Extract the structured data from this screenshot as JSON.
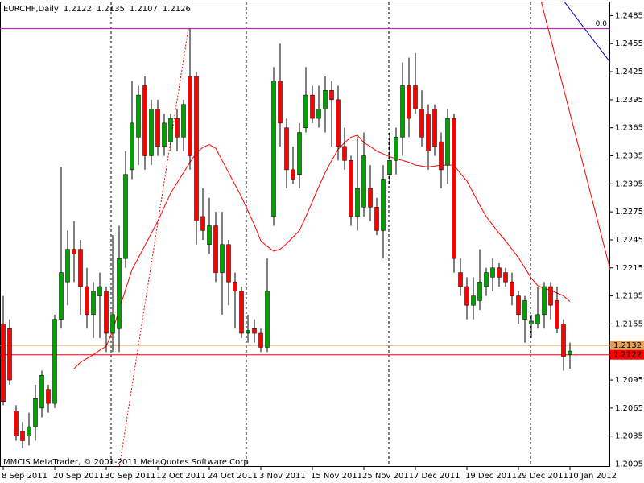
{
  "chart_data": {
    "type": "candlestick",
    "symbol": "EURCHF,Daily",
    "footer": "MMCIS MetaTrader, © 2001-2011 MetaQuotes Software Corp.",
    "up_color": "#00a000",
    "down_color": "#ff0000",
    "wick_color": "#000000",
    "categories": [
      "8 Sep 2011",
      null,
      null,
      null,
      null,
      null,
      null,
      null,
      "20 Sep 2011",
      null,
      null,
      null,
      null,
      null,
      null,
      null,
      "30 Sep 2011",
      null,
      null,
      null,
      null,
      null,
      null,
      null,
      "12 Oct 2011",
      null,
      null,
      null,
      null,
      null,
      null,
      null,
      "24 Oct 2011",
      null,
      null,
      null,
      null,
      null,
      null,
      null,
      "3 Nov 2011",
      null,
      null,
      null,
      null,
      null,
      null,
      null,
      "15 Nov 2011",
      null,
      null,
      null,
      null,
      null,
      null,
      null,
      "25 Nov 2011",
      null,
      null,
      null,
      null,
      null,
      null,
      null,
      "7 Dec 2011",
      null,
      null,
      null,
      null,
      null,
      null,
      null,
      "19 Dec 2011",
      null,
      null,
      null,
      null,
      null,
      null,
      null,
      "29 Dec 2011",
      null,
      null,
      null,
      null,
      null,
      null,
      null,
      "10 Jan 2012"
    ],
    "open": [
      1.2155,
      1.215,
      1.2062,
      1.204,
      1.2035,
      1.2045,
      1.2065,
      1.2085,
      1.207,
      1.216,
      1.22,
      1.2235,
      1.2235,
      1.2195,
      1.2165,
      1.2185,
      1.219,
      1.2145,
      1.215,
      1.2225,
      1.232,
      1.2355,
      1.241,
      1.2335,
      1.2385,
      1.2345,
      1.235,
      1.2375,
      1.2355,
      1.242,
      1.242,
      1.227,
      1.224,
      1.226,
      1.221,
      1.224,
      1.22,
      1.219,
      1.2145,
      1.215,
      1.2145,
      1.213,
      1.227,
      1.2415,
      1.2365,
      1.232,
      1.2315,
      1.2365,
      1.24,
      1.2375,
      1.2385,
      1.2405,
      1.2395,
      1.2345,
      1.233,
      1.227,
      1.228,
      1.23,
      1.228,
      1.2255,
      1.2315,
      1.233,
      1.2355,
      1.241,
      1.241,
      1.2385,
      1.238,
      1.2385,
      1.235,
      1.2325,
      1.2375,
      1.221,
      1.2195,
      1.2175,
      1.218,
      1.2195,
      1.2205,
      1.2215,
      1.221,
      1.22,
      1.2185,
      1.216,
      1.2155,
      1.2155,
      1.2165,
      1.2195,
      1.218,
      1.2155,
      1.2122
    ],
    "high": [
      1.2185,
      1.216,
      1.2068,
      1.205,
      1.206,
      1.209,
      1.2105,
      1.209,
      1.2165,
      1.2323,
      1.2255,
      1.2265,
      1.2245,
      1.2215,
      1.22,
      1.221,
      1.2195,
      1.225,
      1.226,
      1.234,
      1.2415,
      1.241,
      1.242,
      1.2395,
      1.2395,
      1.238,
      1.238,
      1.2385,
      1.2395,
      1.2471,
      1.2425,
      1.23,
      1.229,
      1.2275,
      1.2275,
      1.2245,
      1.221,
      1.2195,
      1.2165,
      1.216,
      1.215,
      1.2225,
      1.243,
      1.2455,
      1.2375,
      1.2345,
      1.237,
      1.243,
      1.241,
      1.241,
      1.242,
      1.2415,
      1.241,
      1.2365,
      1.2335,
      1.2355,
      1.236,
      1.2325,
      1.229,
      1.2325,
      1.236,
      1.2365,
      1.2435,
      1.244,
      1.2445,
      1.2405,
      1.239,
      1.239,
      1.236,
      1.2385,
      1.238,
      1.2225,
      1.2205,
      1.2205,
      1.2235,
      1.2215,
      1.2225,
      1.222,
      1.2215,
      1.221,
      1.219,
      1.2185,
      1.2165,
      1.2195,
      1.22,
      1.22,
      1.2195,
      1.216,
      1.2135
    ],
    "low": [
      1.2068,
      1.209,
      1.203,
      1.2022,
      1.2025,
      1.203,
      1.2055,
      1.206,
      1.2065,
      1.215,
      1.2175,
      1.22,
      1.2165,
      1.215,
      1.214,
      1.214,
      1.2125,
      1.2125,
      1.2125,
      1.2215,
      1.231,
      1.2325,
      1.232,
      1.2325,
      1.2335,
      1.2335,
      1.234,
      1.234,
      1.234,
      1.232,
      1.224,
      1.2245,
      1.223,
      1.22,
      1.2165,
      1.2175,
      1.215,
      1.214,
      1.2135,
      1.2135,
      1.2125,
      1.2125,
      1.226,
      1.2345,
      1.23,
      1.2305,
      1.23,
      1.236,
      1.237,
      1.2365,
      1.236,
      1.2345,
      1.233,
      1.232,
      1.226,
      1.2255,
      1.227,
      1.2265,
      1.225,
      1.2225,
      1.2305,
      1.2315,
      1.2335,
      1.2355,
      1.238,
      1.2345,
      1.232,
      1.2335,
      1.23,
      1.2305,
      1.221,
      1.2185,
      1.216,
      1.216,
      1.217,
      1.2185,
      1.219,
      1.2195,
      1.2195,
      1.2175,
      1.2155,
      1.2135,
      1.214,
      1.215,
      1.215,
      1.216,
      1.2145,
      1.2105,
      1.2107
    ],
    "close": [
      1.2072,
      1.2095,
      1.2035,
      1.203,
      1.2045,
      1.2075,
      1.21,
      1.207,
      1.216,
      1.221,
      1.2235,
      1.223,
      1.2195,
      1.2165,
      1.219,
      1.2195,
      1.2145,
      1.2165,
      1.2225,
      1.2315,
      1.237,
      1.24,
      1.2335,
      1.2385,
      1.2345,
      1.237,
      1.2375,
      1.2355,
      1.239,
      1.2335,
      1.2265,
      1.2255,
      1.226,
      1.221,
      1.224,
      1.22,
      1.219,
      1.2145,
      1.2148,
      1.2145,
      1.213,
      1.219,
      1.2415,
      1.237,
      1.232,
      1.231,
      1.236,
      1.24,
      1.2375,
      1.2385,
      1.2405,
      1.2395,
      1.2345,
      1.233,
      1.227,
      1.23,
      1.2335,
      1.228,
      1.2255,
      1.231,
      1.233,
      1.2355,
      1.241,
      1.2375,
      1.2385,
      1.2355,
      1.234,
      1.2345,
      1.232,
      1.2375,
      1.2225,
      1.2195,
      1.2175,
      1.2185,
      1.22,
      1.221,
      1.2215,
      1.2205,
      1.22,
      1.2185,
      1.2165,
      1.218,
      1.2158,
      1.2165,
      1.2195,
      1.2175,
      1.215,
      1.212,
      1.2126
    ],
    "ma": {
      "color": "#ff0000",
      "values": [
        null,
        null,
        null,
        null,
        null,
        null,
        null,
        null,
        null,
        null,
        null,
        1.2107,
        1.2114,
        1.2118,
        1.2122,
        1.2127,
        1.2131,
        1.2148,
        1.217,
        1.2192,
        1.2213,
        1.2226,
        1.2239,
        1.2252,
        1.2265,
        1.228,
        1.2295,
        1.2306,
        1.2317,
        1.2328,
        1.2338,
        1.2344,
        1.2347,
        1.2343,
        1.233,
        1.2317,
        1.2304,
        1.2291,
        1.2276,
        1.2261,
        1.2244,
        1.2238,
        1.2233,
        1.2235,
        1.2241,
        1.2248,
        1.2255,
        1.227,
        1.2286,
        1.2302,
        1.2317,
        1.233,
        1.2342,
        1.2349,
        1.2355,
        1.2357,
        1.2349,
        1.2345,
        1.234,
        1.2337,
        1.2334,
        1.2332,
        1.233,
        1.2328,
        1.2325,
        1.2324,
        1.2323,
        1.2324,
        1.2325,
        1.2325,
        1.2325,
        1.2316,
        1.2308,
        1.2295,
        1.2282,
        1.227,
        1.2261,
        1.2252,
        1.2244,
        1.2235,
        1.2226,
        1.2215,
        1.2204,
        1.2196,
        1.2193,
        1.2191,
        1.2188,
        1.2185,
        1.2179
      ]
    },
    "hlines": [
      {
        "value": 1.2471,
        "color": "#c000c0",
        "label": "0.0"
      },
      {
        "value": 1.2132,
        "color": "#e0a060",
        "price_tag": true
      },
      {
        "value": 1.2122,
        "color": "#ff0000",
        "price_tag": true
      }
    ],
    "trendlines": [
      {
        "x": [
          28.75,
          18
        ],
        "y": [
          1.2471,
          1.2001
        ],
        "color": "#ff0000",
        "dashed": true
      },
      {
        "x": [
          83.5,
          94.25
        ],
        "y": [
          1.2501,
          1.2213
        ],
        "color": "#ff0000",
        "dashed": false
      },
      {
        "x": [
          87,
          94.25
        ],
        "y": [
          1.2501,
          1.2435
        ],
        "color": "#0000c0",
        "dashed": false
      }
    ],
    "ylim": [
      1.2002,
      1.25
    ],
    "yticks": [
      1.2005,
      1.2035,
      1.2065,
      1.2095,
      1.2125,
      1.2155,
      1.2185,
      1.2215,
      1.2245,
      1.2275,
      1.2305,
      1.2335,
      1.2365,
      1.2395,
      1.2425,
      1.2455,
      1.2485
    ]
  }
}
